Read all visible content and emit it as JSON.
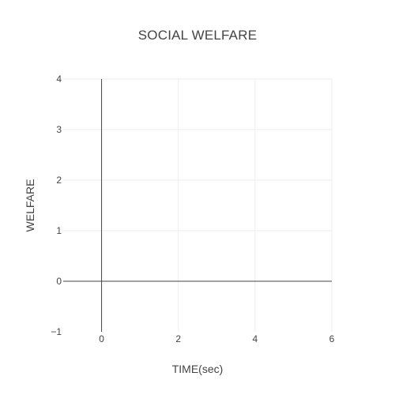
{
  "chart_data": {
    "type": "line",
    "title": "SOCIAL WELFARE",
    "xlabel": "TIME(sec)",
    "ylabel": "WELFARE",
    "xlim": [
      -1,
      6
    ],
    "ylim": [
      -1,
      4
    ],
    "x_ticks": [
      0,
      2,
      4,
      6
    ],
    "y_ticks": [
      -1,
      0,
      1,
      2,
      3,
      4
    ],
    "x_tick_labels": [
      "0",
      "2",
      "4",
      "6"
    ],
    "y_tick_labels": [
      "−1",
      "0",
      "1",
      "2",
      "3",
      "4"
    ],
    "grid": true,
    "series": []
  },
  "colors": {
    "background": "#ffffff",
    "grid": "#eeeeee",
    "zeroline": "#444444",
    "text": "#444444"
  }
}
